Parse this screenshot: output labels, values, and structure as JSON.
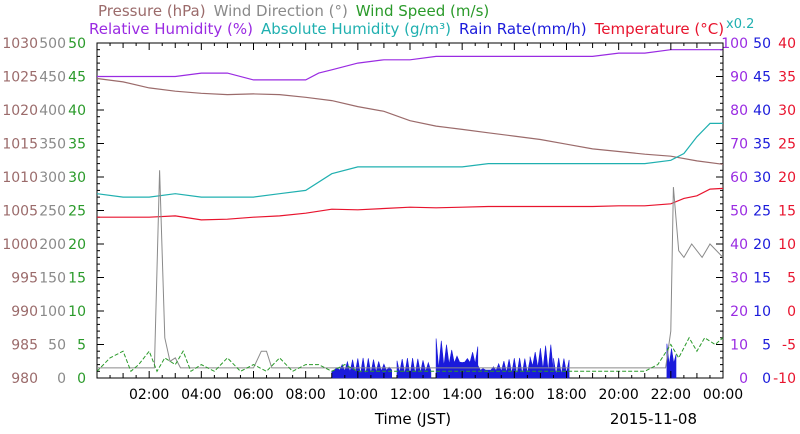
{
  "header": {
    "line1": [
      {
        "text": "Pressure (hPa)",
        "color": "#9b6b6b"
      },
      {
        "text": "Wind Direction (°)",
        "color": "#8a8a8a"
      },
      {
        "text": "Wind Speed (m/s)",
        "color": "#2a9a2a"
      }
    ],
    "line2": [
      {
        "text": "Relative Humidity (%)",
        "color": "#9a2be2"
      },
      {
        "text": "Absolute Humidity (g/m³)",
        "color": "#20b0b0"
      },
      {
        "text": "Rain Rate(mm/h)",
        "color": "#1a1adb"
      },
      {
        "text": "Temperature (°C)",
        "color": "#e8142e"
      }
    ],
    "rain_scale_note": "x0.2",
    "rain_scale_note_color": "#20b0b0"
  },
  "footer": {
    "xlabel": "Time (JST)",
    "date": "2015-11-08"
  },
  "chart_data": {
    "type": "line",
    "xlim": [
      0,
      24
    ],
    "x_tick_labels": [
      "02:00",
      "04:00",
      "06:00",
      "08:00",
      "10:00",
      "12:00",
      "14:00",
      "16:00",
      "18:00",
      "20:00",
      "22:00",
      "00:00"
    ],
    "x_tick_values": [
      2,
      4,
      6,
      8,
      10,
      12,
      14,
      16,
      18,
      20,
      22,
      24
    ],
    "axes": [
      {
        "name": "Pressure",
        "color": "#9b6b6b",
        "ylim": [
          980,
          1030
        ],
        "ticks": [
          "980",
          "985",
          "990",
          "995",
          "1000",
          "1005",
          "1010",
          "1015",
          "1020",
          "1025",
          "1030"
        ]
      },
      {
        "name": "Wind Direction",
        "color": "#8a8a8a",
        "ylim": [
          0,
          500
        ],
        "ticks": [
          "0",
          "50",
          "100",
          "150",
          "200",
          "250",
          "300",
          "350",
          "400",
          "450",
          "500"
        ]
      },
      {
        "name": "Wind Speed",
        "color": "#2a9a2a",
        "ylim": [
          0,
          50
        ],
        "ticks": [
          "0",
          "5",
          "10",
          "15",
          "20",
          "25",
          "30",
          "35",
          "40",
          "45",
          "50"
        ]
      },
      {
        "name": "Relative Humidity",
        "color": "#9a2be2",
        "ylim": [
          0,
          100
        ],
        "ticks": [
          "0",
          "10",
          "20",
          "30",
          "40",
          "50",
          "60",
          "70",
          "80",
          "90",
          "100"
        ]
      },
      {
        "name": "Rain Rate",
        "color": "#1a1adb",
        "ylim": [
          0,
          50
        ],
        "ticks": [
          "0",
          "5",
          "10",
          "15",
          "20",
          "25",
          "30",
          "35",
          "40",
          "45",
          "50"
        ]
      },
      {
        "name": "Temperature",
        "color": "#e8142e",
        "ylim": [
          -10,
          40
        ],
        "ticks": [
          "-10",
          "-5",
          "0",
          "5",
          "10",
          "15",
          "20",
          "25",
          "30",
          "35",
          "40"
        ]
      }
    ],
    "series": [
      {
        "name": "Pressure",
        "color": "#9b6b6b",
        "axis": 0,
        "x": [
          0,
          1,
          2,
          3,
          4,
          5,
          6,
          7,
          8,
          9,
          10,
          11,
          12,
          13,
          14,
          15,
          16,
          17,
          18,
          19,
          20,
          21,
          22,
          23,
          24
        ],
        "y": [
          1024.7,
          1024.2,
          1023.3,
          1022.8,
          1022.5,
          1022.3,
          1022.4,
          1022.3,
          1021.9,
          1021.4,
          1020.5,
          1019.8,
          1018.4,
          1017.6,
          1017.1,
          1016.6,
          1016.1,
          1015.6,
          1014.9,
          1014.2,
          1013.8,
          1013.4,
          1013.1,
          1012.4,
          1011.9
        ]
      },
      {
        "name": "Relative Humidity",
        "color": "#9a2be2",
        "axis": 3,
        "x": [
          0,
          1,
          2,
          3,
          4,
          5,
          6,
          7,
          8,
          8.5,
          9,
          10,
          11,
          12,
          13,
          14,
          15,
          16,
          17,
          18,
          19,
          20,
          21,
          22,
          23,
          24
        ],
        "y": [
          90,
          90,
          90,
          90,
          91,
          91,
          89,
          89,
          89,
          91,
          92,
          94,
          95,
          95,
          96,
          96,
          96,
          96,
          96,
          96,
          96,
          97,
          97,
          98,
          98,
          98
        ]
      },
      {
        "name": "Absolute Humidity",
        "color": "#20b0b0",
        "axis": 3,
        "x": [
          0,
          1,
          2,
          3,
          4,
          5,
          6,
          7,
          8,
          9,
          10,
          11,
          12,
          13,
          14,
          15,
          16,
          17,
          18,
          19,
          20,
          21,
          22,
          22.5,
          23,
          23.5,
          24
        ],
        "y": [
          55,
          54,
          54,
          55,
          54,
          54,
          54,
          55,
          56,
          61,
          63,
          63,
          63,
          63,
          63,
          64,
          64,
          64,
          64,
          64,
          64,
          64,
          65,
          67,
          72,
          76,
          76
        ]
      },
      {
        "name": "Temperature",
        "color": "#e8142e",
        "axis": 5,
        "x": [
          0,
          1,
          2,
          3,
          4,
          5,
          6,
          7,
          8,
          9,
          10,
          11,
          12,
          13,
          14,
          15,
          16,
          17,
          18,
          19,
          20,
          21,
          22,
          22.5,
          23,
          23.5,
          24
        ],
        "y": [
          14,
          14,
          14,
          14.2,
          13.6,
          13.7,
          14,
          14.2,
          14.6,
          15.2,
          15.1,
          15.3,
          15.5,
          15.4,
          15.5,
          15.6,
          15.6,
          15.6,
          15.6,
          15.6,
          15.7,
          15.7,
          16,
          16.8,
          17.2,
          18.2,
          18.3
        ]
      },
      {
        "name": "Wind Direction",
        "color": "#8a8a8a",
        "axis": 1,
        "x": [
          0,
          1,
          1.8,
          2.2,
          2.4,
          2.6,
          2.8,
          3,
          3.2,
          4,
          6,
          6.3,
          6.5,
          6.7,
          7,
          9,
          12,
          14,
          16,
          18,
          20,
          21.8,
          22,
          22.1,
          22.3,
          22.5,
          22.8,
          23.2,
          23.5,
          24
        ],
        "y": [
          15,
          15,
          15,
          15,
          310,
          60,
          25,
          30,
          15,
          15,
          15,
          40,
          40,
          15,
          15,
          15,
          15,
          15,
          15,
          15,
          15,
          15,
          70,
          285,
          190,
          180,
          200,
          180,
          200,
          180
        ]
      },
      {
        "name": "Wind Speed",
        "color": "#2a9a2a",
        "axis": 2,
        "x": [
          0,
          0.5,
          1,
          1.3,
          1.6,
          2,
          2.3,
          2.6,
          3,
          3.3,
          3.6,
          4,
          4.5,
          5,
          5.5,
          6,
          6.5,
          7,
          7.5,
          8,
          8.5,
          9,
          9.5,
          10,
          11,
          12,
          13,
          14,
          15,
          16,
          17,
          18,
          19,
          20,
          21,
          21.5,
          22,
          22.3,
          22.7,
          23,
          23.3,
          23.7,
          24
        ],
        "y": [
          1,
          3,
          4,
          1,
          2,
          4,
          1,
          3,
          2,
          4,
          1,
          2,
          1,
          3,
          1,
          2,
          1,
          3,
          1,
          2,
          2,
          1,
          2,
          1,
          1,
          1,
          1,
          1,
          1,
          1,
          1,
          1,
          1,
          1,
          1,
          2,
          5,
          3,
          6,
          4,
          6,
          5,
          6
        ]
      }
    ],
    "rain": {
      "name": "Rain Rate",
      "color": "#1a1adb",
      "axis": 4,
      "bursts": [
        {
          "x0": 9.0,
          "x1": 11.3,
          "peak": 3
        },
        {
          "x0": 11.5,
          "x1": 12.8,
          "peak": 3
        },
        {
          "x0": 13.0,
          "x1": 14.6,
          "peak": 6
        },
        {
          "x0": 14.6,
          "x1": 16.6,
          "peak": 3
        },
        {
          "x0": 16.6,
          "x1": 17.5,
          "peak": 5
        },
        {
          "x0": 17.5,
          "x1": 18.1,
          "peak": 3
        },
        {
          "x0": 21.85,
          "x1": 22.2,
          "peak": 6
        }
      ]
    },
    "grid": false,
    "legend": "top"
  }
}
